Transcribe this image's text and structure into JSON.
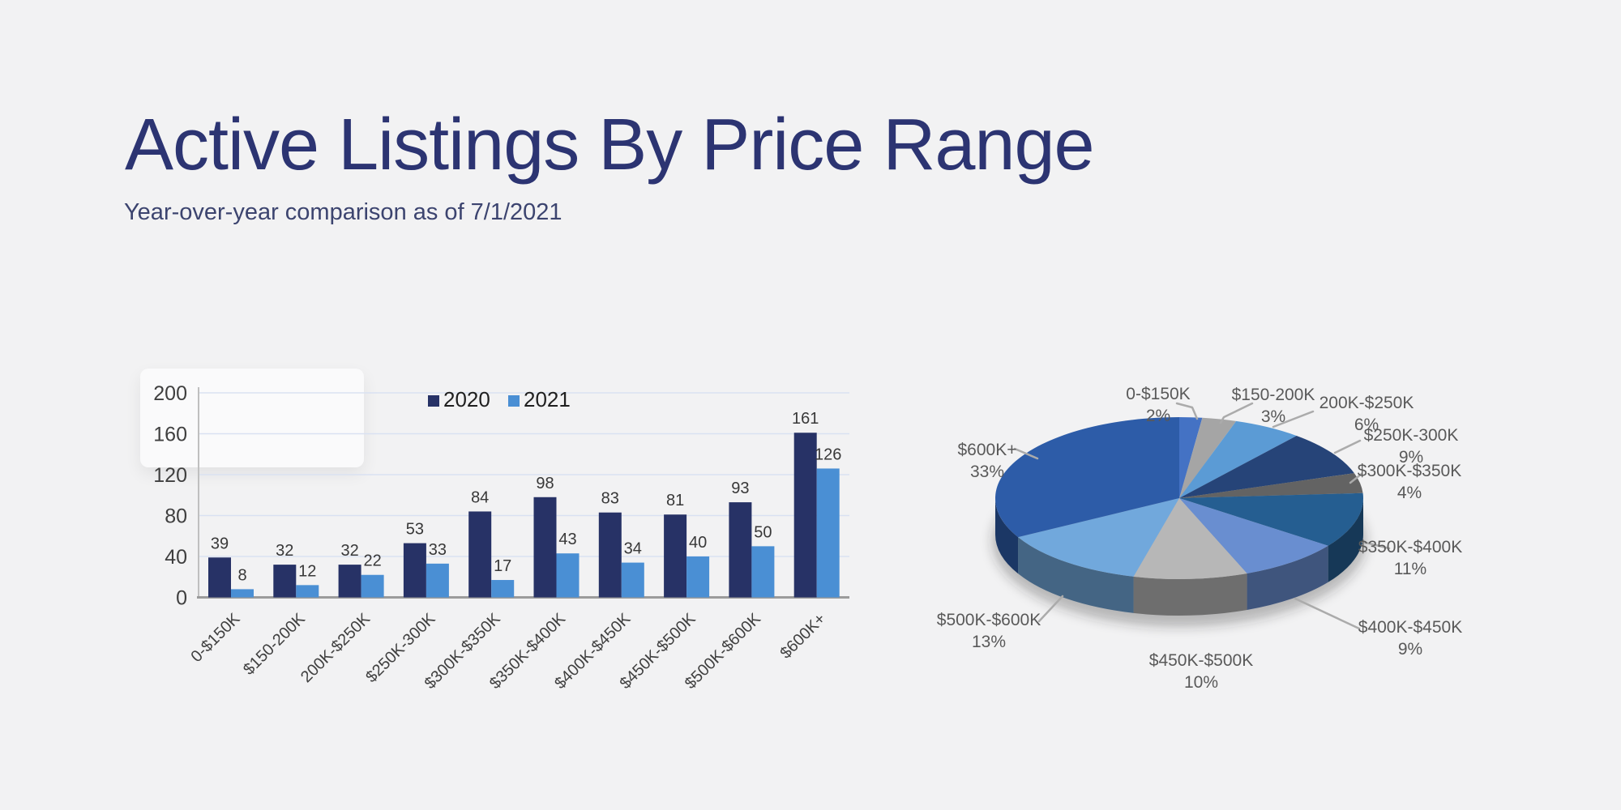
{
  "page": {
    "title": "Active Listings By Price Range",
    "subtitle": "Year-over-year comparison as of 7/1/2021"
  },
  "colors": {
    "background": "#F2F2F3",
    "title": "#2C3472",
    "subtitle": "#3C446F",
    "gridline": "#D9E1F2",
    "y_axis": "#BFBFBF",
    "x_baseline": "#9B9B9B",
    "bar_value_label": "#383838",
    "axis_tick_label": "#3F3F3F",
    "pie_label": "#595959",
    "leader_line": "#ABABAB",
    "legend_text": "#1F1F1F"
  },
  "chart_data": [
    {
      "type": "bar",
      "title": "",
      "categories": [
        "0-$150K",
        "$150-200K",
        "200K-$250K",
        "$250K-300K",
        "$300K-$350K",
        "$350K-$400K",
        "$400K-$450K",
        "$450K-$500K",
        "$500K-$600K",
        "$600K+"
      ],
      "series": [
        {
          "name": "2020",
          "color": "#273266",
          "values": [
            39,
            32,
            32,
            53,
            84,
            98,
            83,
            81,
            93,
            161
          ]
        },
        {
          "name": "2021",
          "color": "#4A8FD4",
          "values": [
            8,
            12,
            22,
            33,
            17,
            43,
            34,
            40,
            50,
            126
          ]
        }
      ],
      "xlabel": "",
      "ylabel": "",
      "ylim": [
        0,
        200
      ],
      "ytick_step": 40,
      "grid": true,
      "legend_position": "top",
      "data_labels": true
    },
    {
      "type": "pie",
      "title": "",
      "style": "3d",
      "start_angle": 0,
      "direction": "clockwise",
      "categories": [
        "0-$150K",
        "$150-200K",
        "200K-$250K",
        "$250K-300K",
        "$300K-$350K",
        "$350K-$400K",
        "$400K-$450K",
        "$450K-$500K",
        "$500K-$600K",
        "$600K+"
      ],
      "values": [
        2,
        3,
        6,
        9,
        4,
        11,
        9,
        10,
        13,
        33
      ],
      "unit": "%",
      "colors": [
        "#4472C4",
        "#A5A5A5",
        "#5B9BD5",
        "#264478",
        "#636363",
        "#255E91",
        "#698ED0",
        "#B7B7B7",
        "#71A8DC",
        "#2D5CA8"
      ]
    }
  ]
}
